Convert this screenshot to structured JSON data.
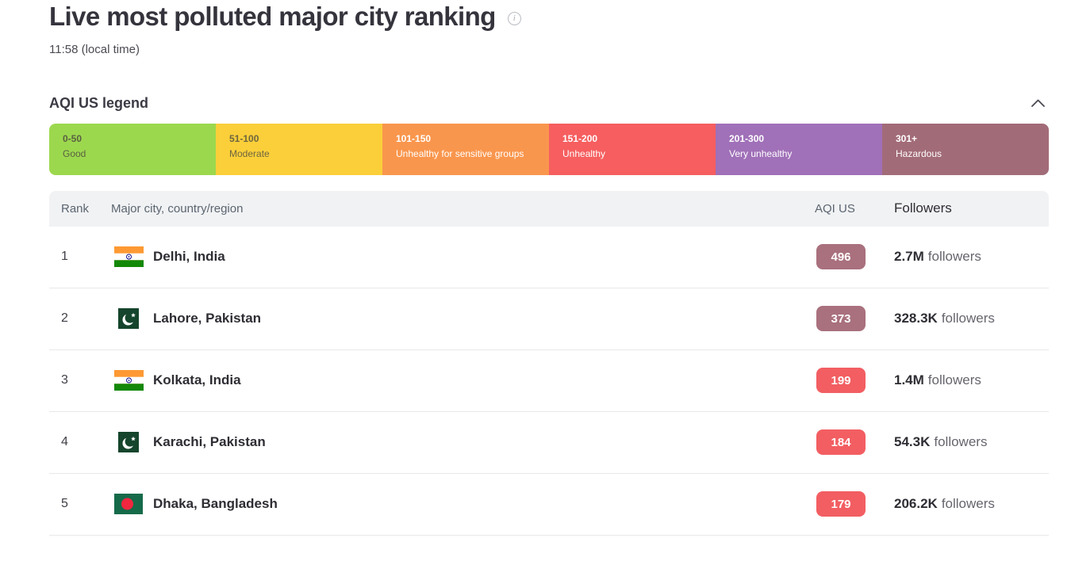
{
  "page": {
    "title": "Live most polluted major city ranking",
    "local_time": "11:58 (local time)",
    "info_icon_glyph": "i"
  },
  "legend": {
    "title": "AQI US legend",
    "bands": [
      {
        "range": "0-50",
        "label": "Good",
        "color": "#9cd84e",
        "text_color": "#5a6142"
      },
      {
        "range": "51-100",
        "label": "Moderate",
        "color": "#facf39",
        "text_color": "#6e6540"
      },
      {
        "range": "101-150",
        "label": "Unhealthy for sensitive groups",
        "color": "#f9964d",
        "text_color": "#ffffff"
      },
      {
        "range": "151-200",
        "label": "Unhealthy",
        "color": "#f65e5f",
        "text_color": "#ffffff"
      },
      {
        "range": "201-300",
        "label": "Very unhealthy",
        "color": "#a070b8",
        "text_color": "#ffffff"
      },
      {
        "range": "301+",
        "label": "Hazardous",
        "color": "#a26b78",
        "text_color": "#ffffff"
      }
    ]
  },
  "table": {
    "headers": {
      "rank": "Rank",
      "city": "Major city, country/region",
      "aqi": "AQI US",
      "followers": "Followers"
    },
    "rows": [
      {
        "rank": "1",
        "flag": "india",
        "city": "Delhi, India",
        "aqi": "496",
        "aqi_color": "#a9707d",
        "followers_value": "2.7M",
        "followers_suffix": "followers"
      },
      {
        "rank": "2",
        "flag": "pakistan",
        "city": "Lahore, Pakistan",
        "aqi": "373",
        "aqi_color": "#a9707d",
        "followers_value": "328.3K",
        "followers_suffix": "followers"
      },
      {
        "rank": "3",
        "flag": "india",
        "city": "Kolkata, India",
        "aqi": "199",
        "aqi_color": "#f25e62",
        "followers_value": "1.4M",
        "followers_suffix": "followers"
      },
      {
        "rank": "4",
        "flag": "pakistan",
        "city": "Karachi, Pakistan",
        "aqi": "184",
        "aqi_color": "#f25e62",
        "followers_value": "54.3K",
        "followers_suffix": "followers"
      },
      {
        "rank": "5",
        "flag": "bangladesh",
        "city": "Dhaka, Bangladesh",
        "aqi": "179",
        "aqi_color": "#f25e62",
        "followers_value": "206.2K",
        "followers_suffix": "followers"
      }
    ]
  }
}
